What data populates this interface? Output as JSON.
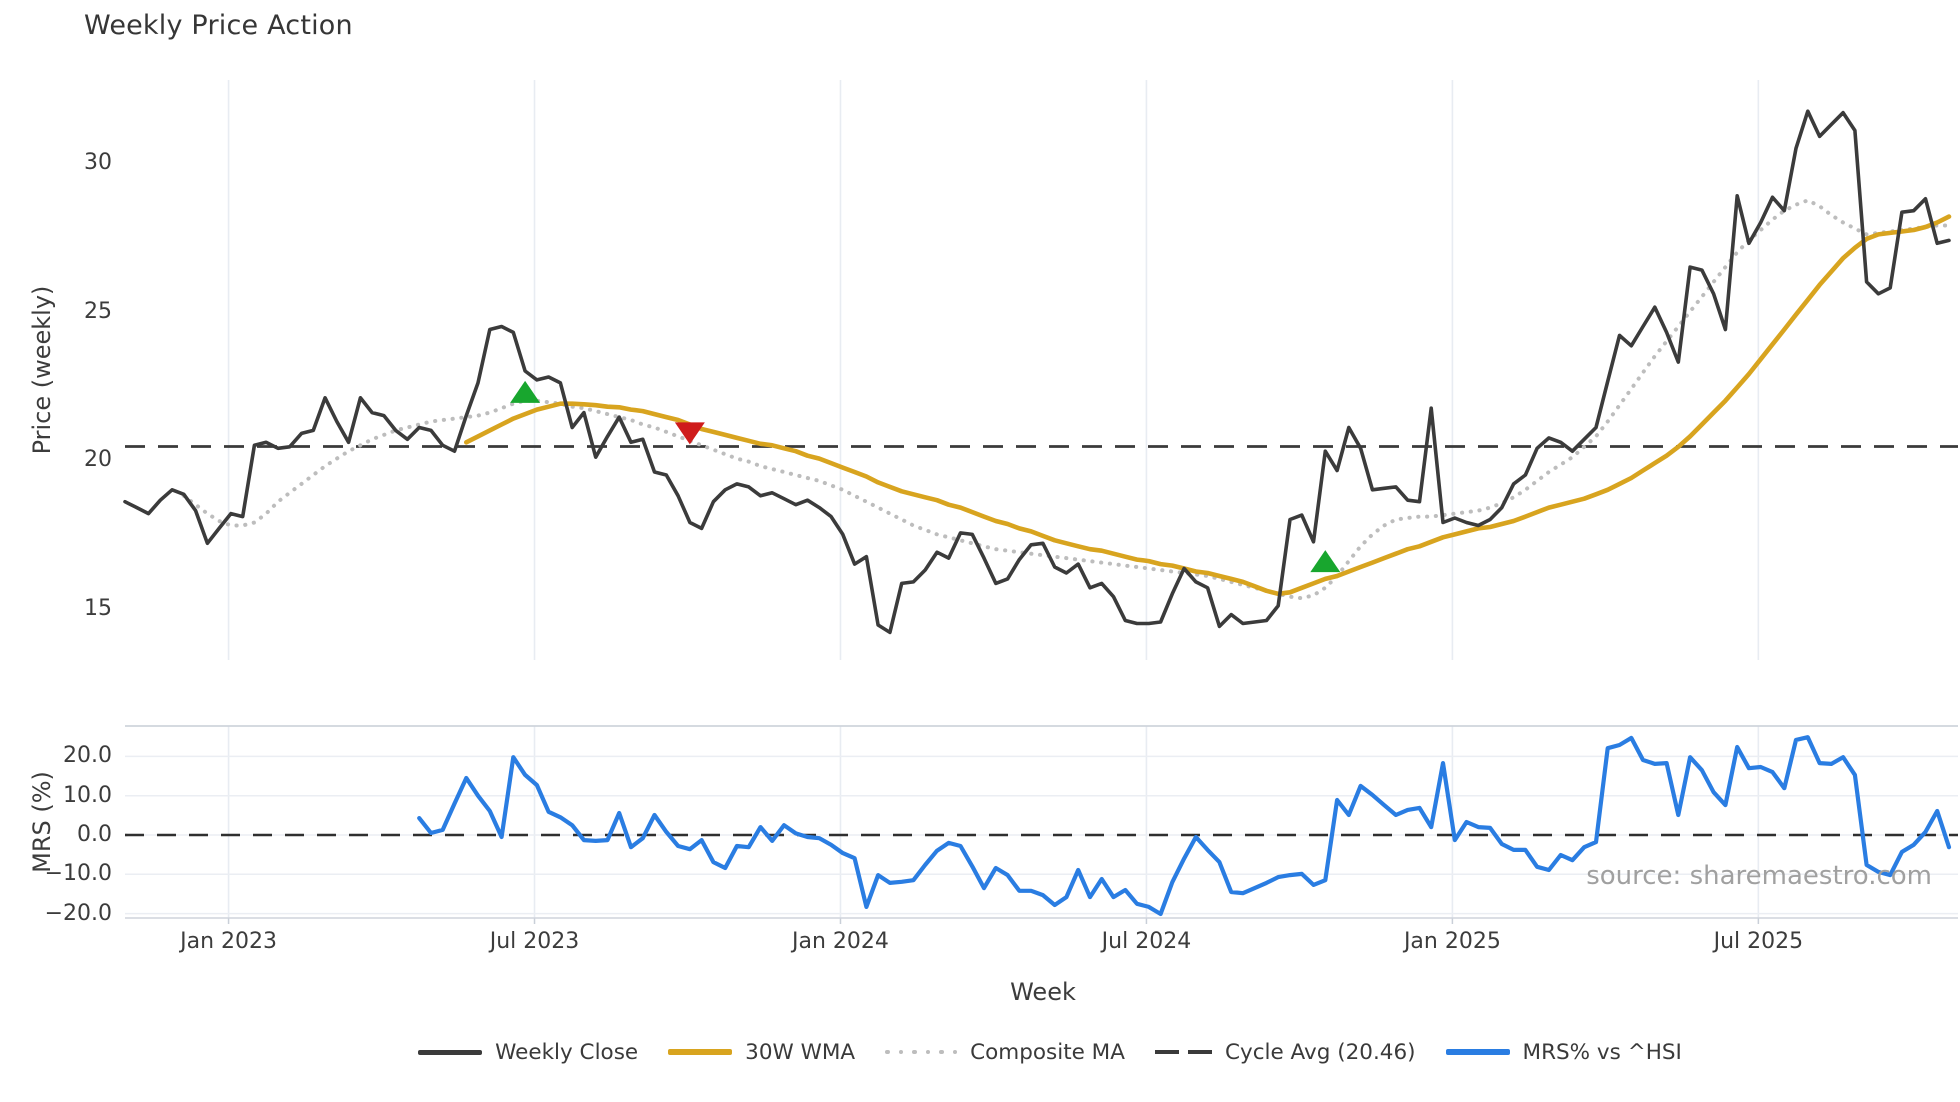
{
  "chart_data": {
    "type": "line",
    "title": "Weekly Price Action",
    "xlabel": "Week",
    "source_text": "source: sharemaestro.com",
    "x_ticks": [
      {
        "label": "Jan 2023",
        "week": 8.8
      },
      {
        "label": "Jul 2023",
        "week": 34.8
      },
      {
        "label": "Jan 2024",
        "week": 60.8
      },
      {
        "label": "Jul 2024",
        "week": 86.8
      },
      {
        "label": "Jan 2025",
        "week": 112.8
      },
      {
        "label": "Jul 2025",
        "week": 138.8
      }
    ],
    "weeks_total": 156,
    "colors": {
      "close": "#3b3b3b",
      "wma": "#d8a41f",
      "composite": "#bdbdbd",
      "cycle": "#3a3a3a",
      "mrs": "#2a7de2",
      "buy": "#18a62e",
      "sell": "#cf1b1b",
      "grid": "#e8ecf2",
      "spine": "#cfd4dc"
    },
    "panels": [
      {
        "name": "price",
        "ylabel": "Price (weekly)",
        "ylim": [
          13.27,
          32.8
        ],
        "yticks": [
          15,
          20,
          25,
          30
        ],
        "ytick_labels": [
          "15",
          "20",
          "25",
          "30"
        ],
        "grid": "vertical",
        "cycle_avg": 20.46,
        "series": [
          {
            "name": "Weekly Close",
            "style": "solid",
            "width": 3.6,
            "color_key": "close",
            "start_week": 0,
            "values": [
              18.6,
              18.4,
              18.2,
              18.65,
              19.0,
              18.85,
              18.3,
              17.2,
              17.7,
              18.2,
              18.1,
              20.5,
              20.6,
              20.4,
              20.45,
              20.9,
              21.0,
              22.1,
              21.3,
              20.6,
              22.1,
              21.6,
              21.5,
              21.0,
              20.7,
              21.1,
              21.0,
              20.5,
              20.3,
              21.5,
              22.6,
              24.4,
              24.5,
              24.3,
              23.0,
              22.7,
              22.8,
              22.6,
              21.1,
              21.6,
              20.1,
              20.8,
              21.45,
              20.6,
              20.7,
              19.6,
              19.5,
              18.8,
              17.9,
              17.7,
              18.6,
              19.0,
              19.2,
              19.1,
              18.8,
              18.9,
              18.7,
              18.5,
              18.65,
              18.4,
              18.1,
              17.5,
              16.5,
              16.75,
              14.45,
              14.2,
              15.85,
              15.9,
              16.3,
              16.9,
              16.7,
              17.55,
              17.5,
              16.7,
              15.85,
              16.0,
              16.65,
              17.15,
              17.2,
              16.4,
              16.2,
              16.5,
              15.7,
              15.85,
              15.4,
              14.6,
              14.5,
              14.5,
              14.55,
              15.5,
              16.35,
              15.9,
              15.7,
              14.4,
              14.8,
              14.5,
              14.55,
              14.6,
              15.1,
              18.0,
              18.15,
              17.25,
              20.3,
              19.65,
              21.1,
              20.4,
              19.0,
              19.05,
              19.1,
              18.65,
              18.6,
              21.75,
              17.9,
              18.05,
              17.9,
              17.8,
              18.0,
              18.4,
              19.2,
              19.5,
              20.4,
              20.75,
              20.6,
              20.3,
              20.7,
              21.1,
              22.65,
              24.2,
              23.85,
              24.5,
              25.15,
              24.3,
              23.3,
              26.5,
              26.4,
              25.6,
              24.4,
              28.9,
              27.3,
              28.0,
              28.85,
              28.4,
              30.5,
              31.75,
              30.9,
              31.3,
              31.7,
              31.1,
              26.0,
              25.6,
              25.8,
              28.35,
              28.4,
              28.8,
              27.3,
              27.4
            ]
          },
          {
            "name": "30W WMA",
            "style": "solid",
            "width": 4.6,
            "color_key": "wma",
            "start_week": 29,
            "values": [
              20.6,
              20.8,
              21.0,
              21.2,
              21.4,
              21.55,
              21.7,
              21.8,
              21.9,
              21.9,
              21.88,
              21.85,
              21.8,
              21.78,
              21.7,
              21.65,
              21.55,
              21.45,
              21.35,
              21.2,
              21.05,
              20.95,
              20.85,
              20.75,
              20.65,
              20.55,
              20.5,
              20.4,
              20.3,
              20.15,
              20.05,
              19.9,
              19.75,
              19.6,
              19.45,
              19.25,
              19.1,
              18.95,
              18.85,
              18.75,
              18.65,
              18.5,
              18.4,
              18.25,
              18.1,
              17.95,
              17.85,
              17.7,
              17.6,
              17.45,
              17.3,
              17.2,
              17.1,
              17.0,
              16.95,
              16.85,
              16.75,
              16.65,
              16.6,
              16.5,
              16.45,
              16.35,
              16.25,
              16.2,
              16.1,
              16.0,
              15.9,
              15.75,
              15.6,
              15.5,
              15.55,
              15.7,
              15.85,
              16.0,
              16.1,
              16.25,
              16.4,
              16.55,
              16.7,
              16.85,
              17.0,
              17.1,
              17.25,
              17.4,
              17.5,
              17.6,
              17.7,
              17.75,
              17.85,
              17.95,
              18.1,
              18.25,
              18.4,
              18.5,
              18.6,
              18.7,
              18.85,
              19.0,
              19.2,
              19.4,
              19.65,
              19.9,
              20.15,
              20.45,
              20.8,
              21.2,
              21.6,
              22.0,
              22.45,
              22.9,
              23.4,
              23.9,
              24.4,
              24.9,
              25.4,
              25.9,
              26.35,
              26.8,
              27.15,
              27.45,
              27.6,
              27.65,
              27.7,
              27.75,
              27.85,
              28.0,
              28.2
            ]
          },
          {
            "name": "Composite MA",
            "style": "dotted",
            "width": 4.0,
            "color_key": "composite",
            "start_week": 5,
            "values": [
              18.8,
              18.5,
              18.2,
              17.95,
              17.8,
              17.8,
              17.9,
              18.2,
              18.6,
              18.9,
              19.2,
              19.5,
              19.8,
              20.05,
              20.3,
              20.5,
              20.7,
              20.85,
              21.0,
              21.1,
              21.2,
              21.3,
              21.35,
              21.4,
              21.45,
              21.5,
              21.6,
              21.75,
              21.9,
              22.0,
              22.0,
              21.95,
              21.9,
              21.8,
              21.75,
              21.65,
              21.55,
              21.45,
              21.35,
              21.2,
              21.1,
              20.95,
              20.8,
              20.65,
              20.5,
              20.35,
              20.2,
              20.05,
              19.95,
              19.8,
              19.7,
              19.6,
              19.5,
              19.4,
              19.3,
              19.15,
              19.0,
              18.8,
              18.6,
              18.4,
              18.2,
              18.0,
              17.8,
              17.65,
              17.5,
              17.4,
              17.3,
              17.2,
              17.1,
              17.0,
              16.95,
              16.9,
              16.85,
              16.8,
              16.75,
              16.7,
              16.65,
              16.6,
              16.55,
              16.5,
              16.45,
              16.4,
              16.35,
              16.3,
              16.25,
              16.2,
              16.15,
              16.1,
              16.0,
              15.9,
              15.8,
              15.7,
              15.6,
              15.5,
              15.4,
              15.35,
              15.45,
              15.7,
              16.1,
              16.6,
              17.1,
              17.5,
              17.8,
              18.0,
              18.05,
              18.1,
              18.1,
              18.15,
              18.2,
              18.25,
              18.3,
              18.4,
              18.55,
              18.75,
              19.0,
              19.3,
              19.6,
              19.85,
              20.1,
              20.45,
              20.8,
              21.3,
              21.85,
              22.4,
              22.95,
              23.5,
              24.0,
              24.5,
              25.0,
              25.5,
              26.0,
              26.5,
              27.0,
              27.4,
              27.75,
              28.1,
              28.4,
              28.6,
              28.75,
              28.55,
              28.25,
              28.0,
              27.8,
              27.6,
              27.65,
              27.7,
              27.75,
              27.8,
              27.85,
              27.9,
              27.9
            ]
          }
        ],
        "markers": [
          {
            "shape": "triangle-up",
            "color_key": "buy",
            "week": 34,
            "price": 22.3
          },
          {
            "shape": "triangle-down",
            "color_key": "sell",
            "week": 48,
            "price": 20.9
          },
          {
            "shape": "triangle-up",
            "color_key": "buy",
            "week": 102,
            "price": 16.6
          }
        ]
      },
      {
        "name": "mrs",
        "ylabel": "MRS (%)",
        "ylim": [
          -21.12,
          27.74
        ],
        "yticks": [
          20,
          10,
          0,
          -10,
          -20
        ],
        "ytick_labels": [
          "20.0",
          "10.0",
          "0.0",
          "−10.0",
          "−20.0"
        ],
        "grid": "both",
        "zero_line": 0,
        "series": [
          {
            "name": "MRS% vs ^HSI",
            "style": "solid",
            "width": 4.2,
            "color_key": "mrs",
            "start_week": 25,
            "values": [
              4.3,
              0.5,
              1.3,
              8.0,
              14.5,
              10.0,
              6.1,
              -0.5,
              19.8,
              15.3,
              12.7,
              5.9,
              4.5,
              2.5,
              -1.3,
              -1.5,
              -1.3,
              5.6,
              -3.1,
              -0.8,
              5.1,
              0.8,
              -2.8,
              -3.6,
              -1.3,
              -6.9,
              -8.4,
              -2.8,
              -3.1,
              2.0,
              -1.5,
              2.5,
              0.4,
              -0.5,
              -0.8,
              -2.5,
              -4.6,
              -5.9,
              -18.3,
              -10.2,
              -12.2,
              -11.9,
              -11.5,
              -7.6,
              -4.0,
              -2.0,
              -2.8,
              -8.0,
              -13.5,
              -8.4,
              -10.2,
              -14.2,
              -14.2,
              -15.3,
              -17.8,
              -15.8,
              -8.9,
              -15.8,
              -11.2,
              -15.8,
              -14.0,
              -17.5,
              -18.3,
              -20.1,
              -12.0,
              -6.0,
              -0.5,
              -3.8,
              -6.9,
              -14.5,
              -14.8,
              -13.5,
              -12.2,
              -10.7,
              -10.2,
              -9.9,
              -12.7,
              -11.5,
              8.9,
              5.1,
              12.5,
              10.2,
              7.6,
              5.1,
              6.4,
              6.9,
              2.0,
              18.3,
              -1.3,
              3.3,
              2.0,
              1.8,
              -2.3,
              -3.8,
              -3.8,
              -8.1,
              -8.9,
              -5.1,
              -6.4,
              -3.1,
              -1.8,
              22.1,
              22.9,
              24.7,
              19.1,
              18.1,
              18.3,
              5.1,
              19.8,
              16.5,
              10.9,
              7.6,
              22.4,
              17.0,
              17.3,
              16.0,
              11.9,
              24.2,
              24.9,
              18.3,
              18.1,
              19.8,
              15.3,
              -7.6,
              -9.4,
              -10.2,
              -4.3,
              -2.5,
              0.8,
              6.1,
              -3.1
            ]
          }
        ]
      }
    ],
    "legend": [
      {
        "label": "Weekly Close",
        "style": "solid",
        "color_key": "close"
      },
      {
        "label": "30W WMA",
        "style": "solid-thick",
        "color_key": "wma"
      },
      {
        "label": "Composite MA",
        "style": "dotted",
        "color_key": "composite"
      },
      {
        "label": "Cycle Avg (20.46)",
        "style": "dashed",
        "color_key": "cycle"
      },
      {
        "label": "MRS% vs ^HSI",
        "style": "solid-thick",
        "color_key": "mrs"
      }
    ]
  }
}
